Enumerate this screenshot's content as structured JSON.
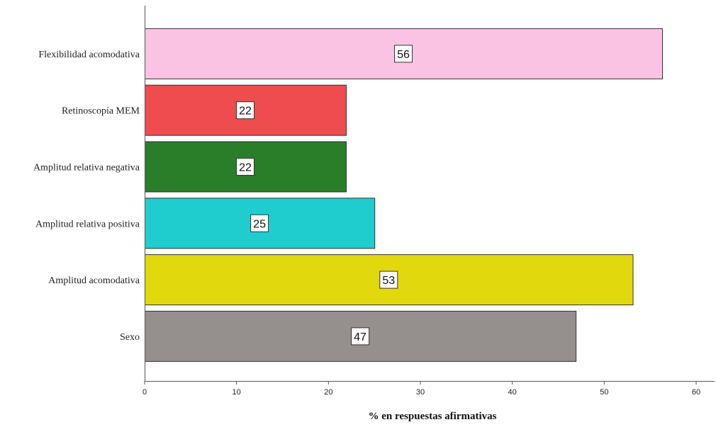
{
  "chart_data": {
    "type": "bar",
    "orientation": "horizontal",
    "title": "",
    "xlabel": "% en respuestas afirmativas",
    "ylabel": "",
    "xlim": [
      0,
      60
    ],
    "x_ticks": [
      0,
      10,
      20,
      30,
      40,
      50,
      60
    ],
    "grid": false,
    "categories": [
      "Flexibilidad acomodativa",
      "Retinoscopía MEM",
      "Amplitud relativa negativa",
      "Amplitud relativa positiva",
      "Amplitud acomodativa",
      "Sexo"
    ],
    "values": [
      56.3,
      21.9,
      21.9,
      25,
      53.1,
      46.9
    ],
    "data_labels": [
      "56",
      "22",
      "22",
      "25",
      "53",
      "47"
    ],
    "colors": [
      "#FBC3E3",
      "#EE4C4E",
      "#2A7E29",
      "#1FCDCF",
      "#E2D80E",
      "#958F8D"
    ]
  }
}
